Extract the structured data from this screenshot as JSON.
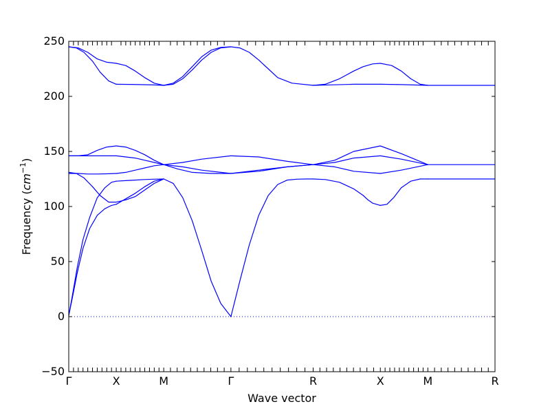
{
  "chart_data": {
    "type": "line",
    "title": "",
    "xlabel": "Wave vector",
    "ylabel_text": "Frequency (",
    "ylabel_unit_base": "cm",
    "ylabel_unit_exp": "−1",
    "ylabel_close": ")",
    "ylim": [
      -50,
      250
    ],
    "yticks": [
      -50,
      0,
      50,
      100,
      150,
      200,
      250
    ],
    "grid": false,
    "line_color": "#0000ff",
    "zero_line": {
      "y": 0,
      "style": "dotted",
      "color": "#0000ff"
    },
    "high_symmetry_points": [
      {
        "label": "Γ",
        "x": 0.0
      },
      {
        "label": "X",
        "x": 0.5
      },
      {
        "label": "M",
        "x": 1.0
      },
      {
        "label": "Γ",
        "x": 1.707
      },
      {
        "label": "R",
        "x": 2.573
      },
      {
        "label": "X",
        "x": 3.28
      },
      {
        "label": "M",
        "x": 3.78
      },
      {
        "label": "R",
        "x": 4.487
      }
    ],
    "minor_ticks_per_segment": 10,
    "series": [
      {
        "x": [
          0.0,
          0.04,
          0.09,
          0.15,
          0.22,
          0.3,
          0.38,
          0.45,
          0.5
        ],
        "y": [
          1,
          20,
          45,
          70,
          90,
          108,
          117,
          122,
          123
        ]
      },
      {
        "x": [
          0.5,
          0.6,
          0.7,
          0.8,
          0.9,
          1.0
        ],
        "y": [
          123,
          123.5,
          124,
          124.5,
          124.8,
          125
        ]
      },
      {
        "x": [
          1.0,
          1.1,
          1.2,
          1.3,
          1.4,
          1.5,
          1.6,
          1.707
        ],
        "y": [
          125,
          121,
          108,
          87,
          60,
          32,
          12,
          0
        ]
      },
      {
        "x": [
          1.707,
          1.8,
          1.9,
          2.0,
          2.1,
          2.2,
          2.3,
          2.4,
          2.5,
          2.573
        ],
        "y": [
          0,
          32,
          65,
          92,
          110,
          120,
          124,
          124.8,
          125,
          125
        ]
      },
      {
        "x": [
          2.573,
          2.7,
          2.85,
          3.0,
          3.1,
          3.15,
          3.2,
          3.28
        ],
        "y": [
          125,
          124.5,
          122,
          116,
          110,
          106,
          103,
          101
        ]
      },
      {
        "x": [
          3.28,
          3.35,
          3.42,
          3.5,
          3.6,
          3.7,
          3.78
        ],
        "y": [
          101,
          102,
          108,
          117,
          123,
          125,
          125
        ]
      },
      {
        "x": [
          3.78,
          4.0,
          4.2,
          4.487
        ],
        "y": [
          125,
          125,
          125,
          125
        ]
      },
      {
        "x": [
          0.0,
          0.04,
          0.09,
          0.15,
          0.22,
          0.3,
          0.38,
          0.45,
          0.5
        ],
        "y": [
          1,
          18,
          40,
          62,
          80,
          92,
          98,
          101,
          102
        ]
      },
      {
        "x": [
          0.5,
          0.6,
          0.7,
          0.8,
          0.9,
          1.0
        ],
        "y": [
          102,
          107,
          112,
          118,
          123,
          125
        ]
      },
      {
        "x": [
          0.0,
          0.1,
          0.2,
          0.3,
          0.4,
          0.5
        ],
        "y": [
          130,
          130,
          129.5,
          129.5,
          129.7,
          130
        ]
      },
      {
        "x": [
          0.5,
          0.6,
          0.7,
          0.8,
          0.9,
          1.0
        ],
        "y": [
          130,
          131,
          133,
          135,
          137,
          138
        ]
      },
      {
        "x": [
          1.0,
          1.2,
          1.4,
          1.707
        ],
        "y": [
          138,
          140,
          143,
          146
        ]
      },
      {
        "x": [
          1.707,
          2.0,
          2.3,
          2.573
        ],
        "y": [
          146,
          145,
          141,
          138
        ]
      },
      {
        "x": [
          2.573,
          2.8,
          3.0,
          3.28
        ],
        "y": [
          138,
          140,
          144,
          146
        ]
      },
      {
        "x": [
          3.28,
          3.5,
          3.78
        ],
        "y": [
          146,
          143,
          138
        ]
      },
      {
        "x": [
          3.78,
          4.0,
          4.2,
          4.487
        ],
        "y": [
          138,
          138,
          138,
          138
        ]
      },
      {
        "x": [
          0.0,
          0.08,
          0.16,
          0.25,
          0.33,
          0.42,
          0.5
        ],
        "y": [
          131,
          130,
          126,
          118,
          110,
          104,
          104
        ]
      },
      {
        "x": [
          0.5,
          0.6,
          0.7,
          0.8,
          0.9,
          1.0
        ],
        "y": [
          104,
          106,
          109,
          115,
          121,
          125
        ]
      },
      {
        "x": [
          0.0,
          0.1,
          0.2,
          0.3,
          0.4,
          0.5
        ],
        "y": [
          146,
          146,
          146,
          146,
          146,
          146
        ]
      },
      {
        "x": [
          0.5,
          0.6,
          0.7,
          0.8,
          0.9,
          1.0
        ],
        "y": [
          146,
          145,
          144,
          142,
          140,
          138
        ]
      },
      {
        "x": [
          1.0,
          1.15,
          1.3,
          1.5,
          1.707
        ],
        "y": [
          138,
          134,
          131,
          130,
          130
        ]
      },
      {
        "x": [
          1.707,
          2.0,
          2.3,
          2.573
        ],
        "y": [
          130,
          132,
          136,
          138
        ]
      },
      {
        "x": [
          2.573,
          2.8,
          3.0,
          3.28
        ],
        "y": [
          138,
          136,
          132,
          130
        ]
      },
      {
        "x": [
          3.28,
          3.5,
          3.78
        ],
        "y": [
          130,
          133,
          138
        ]
      },
      {
        "x": [
          0.0,
          0.1,
          0.2,
          0.3,
          0.4,
          0.5
        ],
        "y": [
          146,
          146,
          147,
          151,
          154,
          155
        ]
      },
      {
        "x": [
          0.5,
          0.6,
          0.7,
          0.8,
          0.9,
          1.0
        ],
        "y": [
          155,
          154,
          151,
          147,
          142,
          138
        ]
      },
      {
        "x": [
          1.0,
          1.2,
          1.4,
          1.707
        ],
        "y": [
          138,
          136,
          133,
          130
        ]
      },
      {
        "x": [
          1.707,
          2.0,
          2.3,
          2.573
        ],
        "y": [
          130,
          133,
          136,
          138
        ]
      },
      {
        "x": [
          2.573,
          2.8,
          3.0,
          3.28
        ],
        "y": [
          138,
          142,
          150,
          155
        ]
      },
      {
        "x": [
          3.28,
          3.5,
          3.78
        ],
        "y": [
          155,
          148,
          138
        ]
      },
      {
        "x": [
          0.0,
          0.08,
          0.16,
          0.25,
          0.33,
          0.42,
          0.5
        ],
        "y": [
          245,
          244,
          240,
          232,
          222,
          214,
          211
        ]
      },
      {
        "x": [
          0.5,
          0.7,
          0.9,
          1.0
        ],
        "y": [
          211,
          210.8,
          210.4,
          210
        ]
      },
      {
        "x": [
          1.0,
          1.1,
          1.2,
          1.3,
          1.4,
          1.5,
          1.6,
          1.707
        ],
        "y": [
          210,
          212,
          218,
          227,
          236,
          242,
          244.5,
          245
        ]
      },
      {
        "x": [
          1.707,
          1.8,
          1.9,
          2.0,
          2.1,
          2.2,
          2.35,
          2.573
        ],
        "y": [
          245,
          244,
          240,
          233,
          225,
          217,
          212,
          210
        ]
      },
      {
        "x": [
          2.573,
          2.8,
          3.0,
          3.28
        ],
        "y": [
          210,
          210.5,
          211,
          211
        ]
      },
      {
        "x": [
          3.28,
          3.5,
          3.78,
          4.0,
          4.487
        ],
        "y": [
          211,
          210.7,
          210,
          210,
          210
        ]
      },
      {
        "x": [
          0.0,
          0.1,
          0.2,
          0.3,
          0.4,
          0.5
        ],
        "y": [
          245,
          244,
          240,
          234,
          231,
          230
        ]
      },
      {
        "x": [
          0.5,
          0.6,
          0.7,
          0.8,
          0.9,
          1.0
        ],
        "y": [
          230,
          228,
          223,
          217,
          212,
          210
        ]
      },
      {
        "x": [
          1.0,
          1.1,
          1.2,
          1.3,
          1.4,
          1.5,
          1.6,
          1.707
        ],
        "y": [
          210,
          211,
          216,
          224,
          233,
          240,
          244,
          245
        ]
      },
      {
        "x": [
          2.573,
          2.7,
          2.85,
          3.0,
          3.1,
          3.2,
          3.28
        ],
        "y": [
          210,
          211,
          216,
          223,
          227,
          229.5,
          230
        ]
      },
      {
        "x": [
          3.28,
          3.4,
          3.5,
          3.6,
          3.7,
          3.78
        ],
        "y": [
          230,
          228,
          223,
          216,
          211,
          210
        ]
      }
    ]
  }
}
